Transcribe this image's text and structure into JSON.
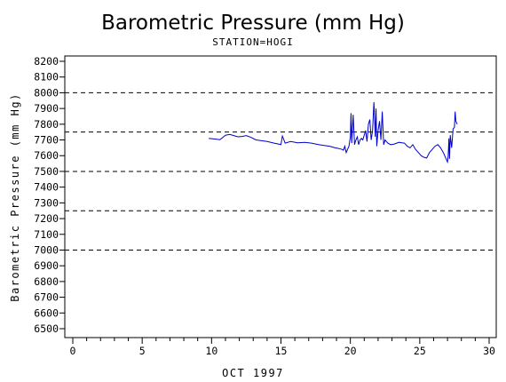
{
  "chart_data": {
    "type": "line",
    "title": "Barometric Pressure (mm Hg)",
    "subtitle": "STATION=HOGI",
    "xlabel": "OCT 1997",
    "ylabel": "Barometric Pressure (mm Hg)",
    "xlim": [
      0,
      30
    ],
    "ylim": [
      6500,
      8200
    ],
    "x_ticks": [
      0,
      5,
      10,
      15,
      20,
      25,
      30
    ],
    "y_ticks": [
      6500,
      6600,
      6700,
      6800,
      6900,
      7000,
      7100,
      7200,
      7300,
      7400,
      7500,
      7600,
      7700,
      7800,
      7900,
      8000,
      8100,
      8200
    ],
    "reference_lines": [
      7000,
      7250,
      7500,
      7750,
      8000
    ],
    "series_color": "#0000cc",
    "series": [
      {
        "x": [
          9.8,
          10.3,
          10.6,
          10.8,
          11.0,
          11.3,
          11.6,
          11.9,
          12.2,
          12.5,
          12.8,
          13.2,
          13.6,
          14.0,
          14.5,
          15.0,
          15.1,
          15.3,
          15.7,
          16.2,
          16.7,
          17.2,
          17.7,
          18.1,
          18.5,
          18.9,
          19.2,
          19.4,
          19.5,
          19.6,
          19.7,
          19.8,
          19.9,
          20.0,
          20.05,
          20.1,
          20.2,
          20.3,
          20.4,
          20.5,
          20.6,
          20.7,
          20.8,
          20.9,
          21.0,
          21.1,
          21.2,
          21.3,
          21.4,
          21.5,
          21.6,
          21.7,
          21.8,
          21.85,
          21.9,
          22.0,
          22.1,
          22.2,
          22.3,
          22.4,
          22.5,
          22.6,
          22.7,
          22.9,
          23.1,
          23.3,
          23.5,
          23.7,
          23.9,
          24.1,
          24.3,
          24.5,
          24.7,
          24.9,
          25.1,
          25.3,
          25.5,
          25.7,
          25.9,
          26.1,
          26.3,
          26.5,
          26.7,
          26.9,
          27.0,
          27.05,
          27.1,
          27.15,
          27.2,
          27.3,
          27.4,
          27.5,
          27.55,
          27.6,
          27.7
        ],
        "y": [
          7710,
          7705,
          7702,
          7715,
          7730,
          7735,
          7728,
          7720,
          7722,
          7728,
          7718,
          7700,
          7695,
          7690,
          7680,
          7670,
          7725,
          7680,
          7690,
          7682,
          7685,
          7680,
          7670,
          7665,
          7660,
          7650,
          7645,
          7640,
          7635,
          7660,
          7620,
          7640,
          7660,
          7720,
          7870,
          7680,
          7860,
          7670,
          7700,
          7720,
          7670,
          7700,
          7710,
          7700,
          7730,
          7760,
          7690,
          7800,
          7830,
          7700,
          7760,
          7940,
          7720,
          7900,
          7660,
          7760,
          7820,
          7700,
          7880,
          7670,
          7700,
          7690,
          7680,
          7670,
          7672,
          7678,
          7685,
          7682,
          7680,
          7660,
          7650,
          7670,
          7640,
          7620,
          7600,
          7590,
          7585,
          7620,
          7640,
          7660,
          7670,
          7650,
          7620,
          7580,
          7560,
          7600,
          7710,
          7580,
          7730,
          7650,
          7770,
          7780,
          7880,
          7820,
          7800
        ]
      }
    ]
  }
}
